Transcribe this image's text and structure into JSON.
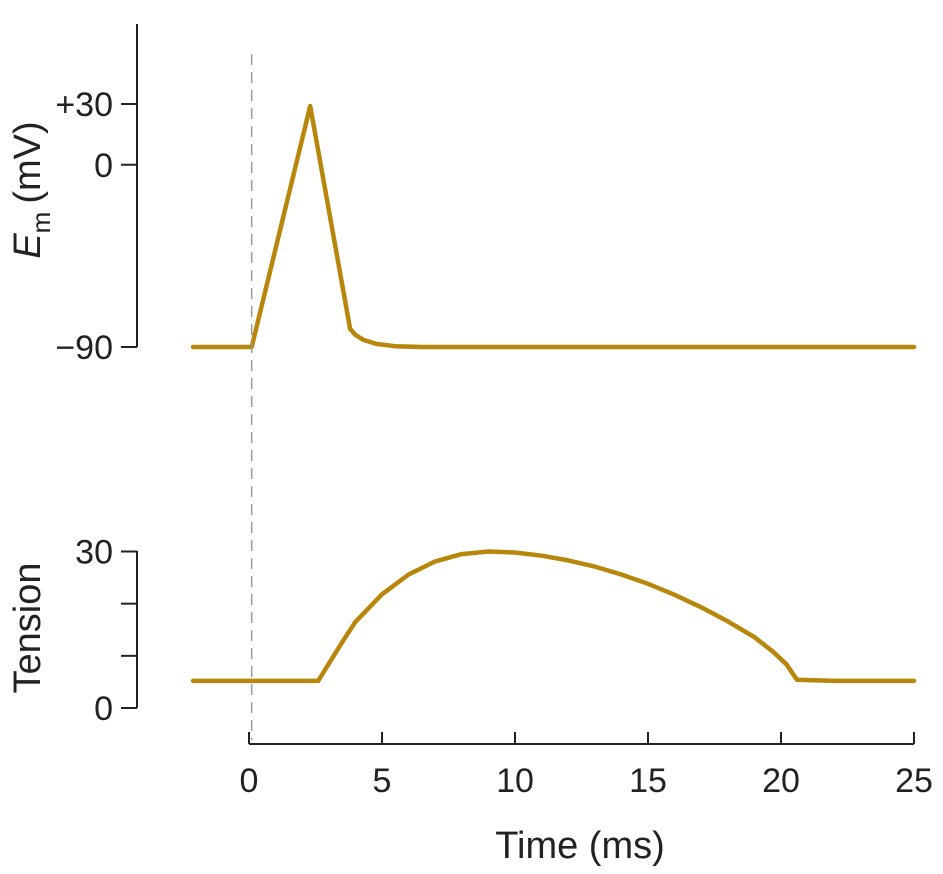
{
  "chart_data": [
    {
      "type": "line",
      "xlim": [
        -2,
        25
      ],
      "ylim": [
        -90,
        30
      ],
      "ylabel": "E",
      "ylabel_subscript": "m",
      "ylabel_unit": "(mV)",
      "y_ticks": [
        30,
        0,
        -90
      ],
      "y_tick_labels": [
        "+30",
        "0",
        "−90"
      ],
      "series": [
        {
          "x": [
            -2.1,
            0.1,
            2.3,
            3.8,
            4.0,
            4.3,
            4.8,
            5.5,
            6.5,
            8,
            25
          ],
          "y": [
            -90,
            -90,
            29,
            -81,
            -84,
            -86.5,
            -88.5,
            -89.6,
            -90,
            -90,
            -90
          ]
        }
      ]
    },
    {
      "type": "line",
      "xlim": [
        -2,
        25
      ],
      "ylim": [
        0,
        30
      ],
      "ylabel": "Tension",
      "y_ticks": [
        30,
        20,
        10,
        0
      ],
      "y_tick_labels": [
        "30",
        "",
        "",
        "0"
      ],
      "series": [
        {
          "x": [
            -2.1,
            2.6,
            3,
            3.5,
            4,
            5,
            6,
            7,
            8,
            9,
            10,
            11,
            12,
            13,
            14,
            15,
            16,
            17,
            18,
            19,
            19.7,
            20.2,
            20.6,
            22,
            25
          ],
          "y": [
            5.2,
            5.2,
            8.5,
            12.6,
            16.5,
            21.8,
            25.6,
            28.1,
            29.5,
            30,
            29.8,
            29.2,
            28.3,
            27.1,
            25.6,
            23.8,
            21.7,
            19.3,
            16.6,
            13.6,
            10.8,
            8.4,
            5.4,
            5.2,
            5.2
          ]
        }
      ]
    }
  ],
  "x_axis": {
    "label": "Time (ms)",
    "ticks": [
      0,
      5,
      10,
      15,
      20,
      25
    ],
    "tick_labels": [
      "0",
      "5",
      "10",
      "15",
      "20",
      "25"
    ]
  },
  "stimulus_marker_x": 0.1,
  "colors": {
    "trace": "#B8860B",
    "axis": "#222222",
    "marker": "#999999"
  }
}
